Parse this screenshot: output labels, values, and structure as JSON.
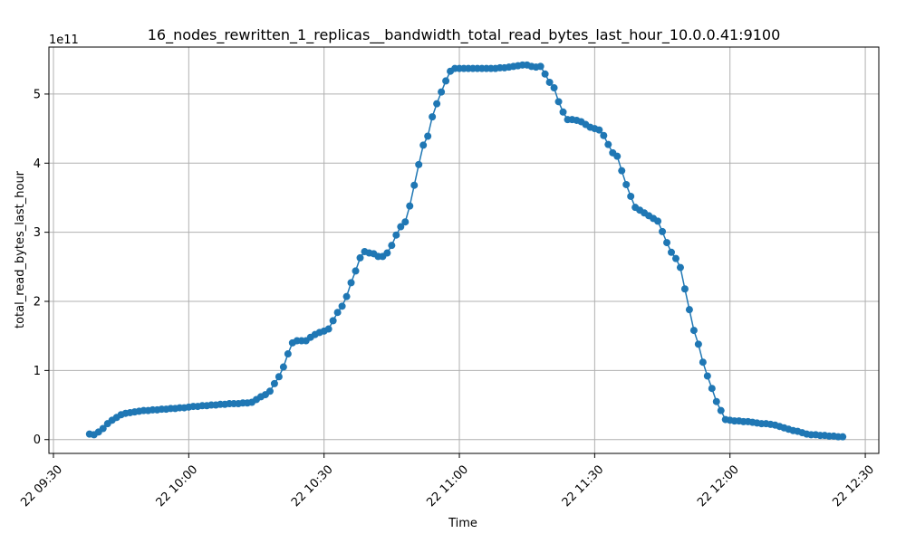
{
  "chart_data": {
    "type": "line",
    "title": "16_nodes_rewritten_1_replicas__bandwidth_total_read_bytes_last_hour_10.0.0.41:9100",
    "xlabel": "Time",
    "ylabel": "total_read_bytes_last_hour",
    "y_offset_label": "1e11",
    "y_unit_scale": 100000000000.0,
    "xlim": [
      "09:29",
      "12:33"
    ],
    "ylim": [
      -0.2,
      5.68
    ],
    "grid": true,
    "x_ticks": [
      {
        "time": "09:30",
        "label": "22 09:30"
      },
      {
        "time": "10:00",
        "label": "22 10:00"
      },
      {
        "time": "10:30",
        "label": "22 10:30"
      },
      {
        "time": "11:00",
        "label": "22 11:00"
      },
      {
        "time": "11:30",
        "label": "22 11:30"
      },
      {
        "time": "12:00",
        "label": "22 12:00"
      },
      {
        "time": "12:30",
        "label": "22 12:30"
      }
    ],
    "y_ticks": [
      0,
      1,
      2,
      3,
      4,
      5
    ],
    "series": [
      {
        "color": "#1f77b4",
        "points": [
          [
            "09:38",
            0.08
          ],
          [
            "09:39",
            0.07
          ],
          [
            "09:40",
            0.11
          ],
          [
            "09:41",
            0.16
          ],
          [
            "09:42",
            0.23
          ],
          [
            "09:43",
            0.28
          ],
          [
            "09:44",
            0.32
          ],
          [
            "09:45",
            0.36
          ],
          [
            "09:46",
            0.38
          ],
          [
            "09:47",
            0.39
          ],
          [
            "09:48",
            0.4
          ],
          [
            "09:49",
            0.41
          ],
          [
            "09:50",
            0.42
          ],
          [
            "09:51",
            0.42
          ],
          [
            "09:52",
            0.43
          ],
          [
            "09:53",
            0.43
          ],
          [
            "09:54",
            0.44
          ],
          [
            "09:55",
            0.44
          ],
          [
            "09:56",
            0.45
          ],
          [
            "09:57",
            0.45
          ],
          [
            "09:58",
            0.46
          ],
          [
            "09:59",
            0.46
          ],
          [
            "10:00",
            0.47
          ],
          [
            "10:01",
            0.48
          ],
          [
            "10:02",
            0.48
          ],
          [
            "10:03",
            0.49
          ],
          [
            "10:04",
            0.49
          ],
          [
            "10:05",
            0.5
          ],
          [
            "10:06",
            0.5
          ],
          [
            "10:07",
            0.51
          ],
          [
            "10:08",
            0.51
          ],
          [
            "10:09",
            0.52
          ],
          [
            "10:10",
            0.52
          ],
          [
            "10:11",
            0.52
          ],
          [
            "10:12",
            0.53
          ],
          [
            "10:13",
            0.53
          ],
          [
            "10:14",
            0.54
          ],
          [
            "10:15",
            0.58
          ],
          [
            "10:16",
            0.62
          ],
          [
            "10:17",
            0.65
          ],
          [
            "10:18",
            0.7
          ],
          [
            "10:19",
            0.81
          ],
          [
            "10:20",
            0.91
          ],
          [
            "10:21",
            1.05
          ],
          [
            "10:22",
            1.24
          ],
          [
            "10:23",
            1.4
          ],
          [
            "10:24",
            1.43
          ],
          [
            "10:25",
            1.43
          ],
          [
            "10:26",
            1.43
          ],
          [
            "10:27",
            1.48
          ],
          [
            "10:28",
            1.52
          ],
          [
            "10:29",
            1.55
          ],
          [
            "10:30",
            1.57
          ],
          [
            "10:31",
            1.6
          ],
          [
            "10:32",
            1.72
          ],
          [
            "10:33",
            1.84
          ],
          [
            "10:34",
            1.93
          ],
          [
            "10:35",
            2.07
          ],
          [
            "10:36",
            2.27
          ],
          [
            "10:37",
            2.44
          ],
          [
            "10:38",
            2.63
          ],
          [
            "10:39",
            2.72
          ],
          [
            "10:40",
            2.7
          ],
          [
            "10:41",
            2.69
          ],
          [
            "10:42",
            2.65
          ],
          [
            "10:43",
            2.65
          ],
          [
            "10:44",
            2.7
          ],
          [
            "10:45",
            2.81
          ],
          [
            "10:46",
            2.96
          ],
          [
            "10:47",
            3.08
          ],
          [
            "10:48",
            3.15
          ],
          [
            "10:49",
            3.38
          ],
          [
            "10:50",
            3.68
          ],
          [
            "10:51",
            3.98
          ],
          [
            "10:52",
            4.26
          ],
          [
            "10:53",
            4.39
          ],
          [
            "10:54",
            4.67
          ],
          [
            "10:55",
            4.86
          ],
          [
            "10:56",
            5.03
          ],
          [
            "10:57",
            5.19
          ],
          [
            "10:58",
            5.33
          ],
          [
            "10:59",
            5.37
          ],
          [
            "11:00",
            5.37
          ],
          [
            "11:01",
            5.37
          ],
          [
            "11:02",
            5.37
          ],
          [
            "11:03",
            5.37
          ],
          [
            "11:04",
            5.37
          ],
          [
            "11:05",
            5.37
          ],
          [
            "11:06",
            5.37
          ],
          [
            "11:07",
            5.37
          ],
          [
            "11:08",
            5.37
          ],
          [
            "11:09",
            5.38
          ],
          [
            "11:10",
            5.38
          ],
          [
            "11:11",
            5.39
          ],
          [
            "11:12",
            5.4
          ],
          [
            "11:13",
            5.41
          ],
          [
            "11:14",
            5.42
          ],
          [
            "11:15",
            5.42
          ],
          [
            "11:16",
            5.4
          ],
          [
            "11:17",
            5.39
          ],
          [
            "11:18",
            5.4
          ],
          [
            "11:19",
            5.29
          ],
          [
            "11:20",
            5.17
          ],
          [
            "11:21",
            5.09
          ],
          [
            "11:22",
            4.89
          ],
          [
            "11:23",
            4.74
          ],
          [
            "11:24",
            4.63
          ],
          [
            "11:25",
            4.63
          ],
          [
            "11:26",
            4.62
          ],
          [
            "11:27",
            4.6
          ],
          [
            "11:28",
            4.56
          ],
          [
            "11:29",
            4.52
          ],
          [
            "11:30",
            4.5
          ],
          [
            "11:31",
            4.48
          ],
          [
            "11:32",
            4.4
          ],
          [
            "11:33",
            4.27
          ],
          [
            "11:34",
            4.15
          ],
          [
            "11:35",
            4.1
          ],
          [
            "11:36",
            3.89
          ],
          [
            "11:37",
            3.69
          ],
          [
            "11:38",
            3.52
          ],
          [
            "11:39",
            3.36
          ],
          [
            "11:40",
            3.32
          ],
          [
            "11:41",
            3.28
          ],
          [
            "11:42",
            3.24
          ],
          [
            "11:43",
            3.2
          ],
          [
            "11:44",
            3.16
          ],
          [
            "11:45",
            3.01
          ],
          [
            "11:46",
            2.85
          ],
          [
            "11:47",
            2.71
          ],
          [
            "11:48",
            2.62
          ],
          [
            "11:49",
            2.49
          ],
          [
            "11:50",
            2.18
          ],
          [
            "11:51",
            1.88
          ],
          [
            "11:52",
            1.58
          ],
          [
            "11:53",
            1.38
          ],
          [
            "11:54",
            1.12
          ],
          [
            "11:55",
            0.92
          ],
          [
            "11:56",
            0.74
          ],
          [
            "11:57",
            0.55
          ],
          [
            "11:58",
            0.42
          ],
          [
            "11:59",
            0.29
          ],
          [
            "12:00",
            0.28
          ],
          [
            "12:01",
            0.27
          ],
          [
            "12:02",
            0.27
          ],
          [
            "12:03",
            0.26
          ],
          [
            "12:04",
            0.26
          ],
          [
            "12:05",
            0.25
          ],
          [
            "12:06",
            0.24
          ],
          [
            "12:07",
            0.23
          ],
          [
            "12:08",
            0.23
          ],
          [
            "12:09",
            0.22
          ],
          [
            "12:10",
            0.21
          ],
          [
            "12:11",
            0.19
          ],
          [
            "12:12",
            0.17
          ],
          [
            "12:13",
            0.15
          ],
          [
            "12:14",
            0.13
          ],
          [
            "12:15",
            0.12
          ],
          [
            "12:16",
            0.1
          ],
          [
            "12:17",
            0.08
          ],
          [
            "12:18",
            0.07
          ],
          [
            "12:19",
            0.07
          ],
          [
            "12:20",
            0.06
          ],
          [
            "12:21",
            0.06
          ],
          [
            "12:22",
            0.05
          ],
          [
            "12:23",
            0.05
          ],
          [
            "12:24",
            0.04
          ],
          [
            "12:25",
            0.04
          ]
        ]
      }
    ]
  }
}
